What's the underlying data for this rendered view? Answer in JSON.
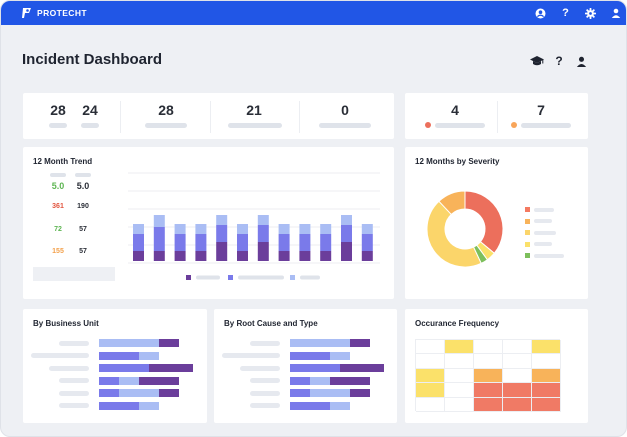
{
  "app": {
    "brand": "PROTECHT",
    "brand_color": "#2156e6"
  },
  "topbar_icons": [
    "user-circle-icon",
    "help-icon",
    "gear-icon",
    "user-icon"
  ],
  "topbar_help_glyph": "?",
  "header": {
    "title": "Incident Dashboard",
    "icons": [
      "graduation-cap-icon",
      "help-icon",
      "user-icon"
    ],
    "help_glyph": "?"
  },
  "kpis": [
    {
      "value": "28"
    },
    {
      "value": "24"
    },
    {
      "value": "28"
    },
    {
      "value": "21"
    },
    {
      "value": "0"
    }
  ],
  "severity_kpis": [
    {
      "value": "4",
      "color": "#ec6f5c"
    },
    {
      "value": "7",
      "color": "#f8a55a"
    }
  ],
  "trend": {
    "title": "12 Month Trend",
    "stats": [
      {
        "left": "5.0",
        "right": "5.0",
        "left_color": "#5db552"
      },
      {
        "left": "361",
        "right": "190",
        "left_color": "#e2553f"
      },
      {
        "left": "72",
        "right": "57",
        "left_color": "#5db552"
      },
      {
        "left": "155",
        "right": "57",
        "left_color": "#f3a04a"
      }
    ],
    "colors": {
      "dark": "#6b3e9b",
      "mid": "#7a7aea",
      "light": "#aabdf4"
    },
    "bars": [
      {
        "dark": 20,
        "mid": 34,
        "light": 20
      },
      {
        "dark": 20,
        "mid": 48,
        "light": 24
      },
      {
        "dark": 20,
        "mid": 34,
        "light": 20
      },
      {
        "dark": 20,
        "mid": 34,
        "light": 20
      },
      {
        "dark": 38,
        "mid": 34,
        "light": 20
      },
      {
        "dark": 20,
        "mid": 34,
        "light": 20
      },
      {
        "dark": 38,
        "mid": 34,
        "light": 20
      },
      {
        "dark": 20,
        "mid": 34,
        "light": 20
      },
      {
        "dark": 20,
        "mid": 34,
        "light": 20
      },
      {
        "dark": 20,
        "mid": 34,
        "light": 20
      },
      {
        "dark": 38,
        "mid": 34,
        "light": 20
      },
      {
        "dark": 20,
        "mid": 34,
        "light": 20
      }
    ]
  },
  "severity": {
    "title": "12 Months by Severity",
    "slices": [
      {
        "value": 36,
        "color": "#ec6f5c"
      },
      {
        "value": 4,
        "color": "#fbe16a"
      },
      {
        "value": 3,
        "color": "#7dbf5c"
      },
      {
        "value": 45,
        "color": "#fbd56a"
      },
      {
        "value": 12,
        "color": "#f8b35a"
      }
    ],
    "legend_colors": [
      "#f47a61",
      "#f8b35a",
      "#fbd56a",
      "#fbe16a",
      "#7dbf5c"
    ]
  },
  "business_unit": {
    "title": "By Business Unit",
    "colors": {
      "mid": "#7a7aea",
      "light": "#aabdf4",
      "dark": "#6b3e9b"
    },
    "rows": [
      {
        "mid": 0,
        "light": 60,
        "dark": 20
      },
      {
        "mid": 40,
        "light": 20,
        "dark": 0
      },
      {
        "mid": 50,
        "light": 0,
        "dark": 44
      },
      {
        "mid": 20,
        "light": 20,
        "dark": 40
      },
      {
        "mid": 20,
        "light": 40,
        "dark": 20
      },
      {
        "mid": 40,
        "light": 20,
        "dark": 0
      }
    ]
  },
  "root_cause": {
    "title": "By Root Cause and Type",
    "rows": [
      {
        "mid": 0,
        "light": 60,
        "dark": 20
      },
      {
        "mid": 40,
        "light": 20,
        "dark": 0
      },
      {
        "mid": 50,
        "light": 0,
        "dark": 44
      },
      {
        "mid": 20,
        "light": 20,
        "dark": 40
      },
      {
        "mid": 20,
        "light": 40,
        "dark": 20
      },
      {
        "mid": 40,
        "light": 20,
        "dark": 0
      }
    ]
  },
  "occurrence": {
    "title": "Occurance Frequency",
    "grid": [
      [
        "",
        "y",
        "",
        "",
        "y"
      ],
      [
        "",
        "",
        "",
        "",
        ""
      ],
      [
        "y",
        "",
        "o",
        "",
        "o"
      ],
      [
        "y",
        "",
        "r",
        "r",
        "r"
      ],
      [
        "",
        "",
        "r",
        "r",
        "r"
      ]
    ],
    "palette": {
      "y": "#fbe16a",
      "o": "#f8b35a",
      "r": "#f07a65"
    }
  }
}
